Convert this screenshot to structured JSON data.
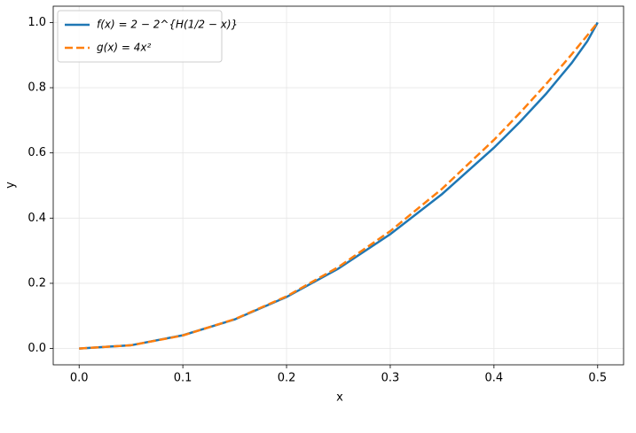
{
  "chart_data": {
    "type": "line",
    "x": [
      0,
      0.05,
      0.1,
      0.15,
      0.2,
      0.25,
      0.3,
      0.35,
      0.4,
      0.425,
      0.45,
      0.475,
      0.49,
      0.5
    ],
    "series": [
      {
        "name": "f(x) = 2 − 2^{H(1/2 − x)}",
        "color": "#1f77b4",
        "dash": false,
        "values": [
          0,
          0.00998,
          0.0407,
          0.0893,
          0.158,
          0.2452,
          0.3506,
          0.4739,
          0.6159,
          0.6948,
          0.7804,
          0.876,
          0.9424,
          1
        ]
      },
      {
        "name": "g(x) = 4x²",
        "color": "#ff7f0e",
        "dash": true,
        "values": [
          0,
          0.01,
          0.04,
          0.09,
          0.16,
          0.25,
          0.36,
          0.49,
          0.64,
          0.7225,
          0.81,
          0.9025,
          0.9604,
          1
        ]
      }
    ],
    "x_label": "x",
    "y_label": "y",
    "xlim": [
      -0.025,
      0.525
    ],
    "xticks": [
      {
        "value": 0,
        "label": "0.0"
      },
      0.1,
      0.2,
      0.3,
      0.4,
      0.5
    ],
    "ylim": [
      -0.05,
      1.05
    ],
    "yticks": [
      {
        "value": 0,
        "label": "0.0"
      },
      0.2,
      0.4,
      0.6,
      0.8,
      {
        "value": 1,
        "label": "1.0"
      }
    ],
    "grid": true,
    "legend": "upper-left"
  }
}
